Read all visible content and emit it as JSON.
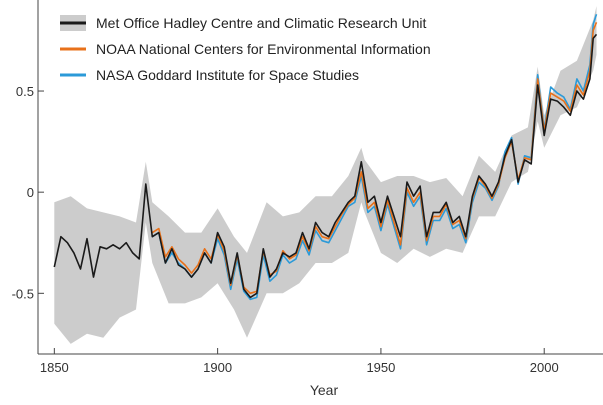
{
  "chart_data": {
    "type": "line",
    "title": "",
    "xlabel": "Year",
    "ylabel": "",
    "xlim": [
      1845,
      2018
    ],
    "ylim": [
      -0.8,
      0.95
    ],
    "grid": false,
    "legend_position": "top-left",
    "x_ticks": [
      1850,
      1900,
      1950,
      2000
    ],
    "x_tick_labels": [
      "1850",
      "1900",
      "1950",
      "2000"
    ],
    "y_ticks": [
      0.5,
      0,
      -0.5
    ],
    "y_tick_labels": [
      "0.5",
      "0",
      "-0.5"
    ],
    "band": {
      "series": "Met Office Hadley Centre and Climatic Research Unit",
      "color": "#cccccc",
      "x": [
        1850,
        1855,
        1860,
        1865,
        1870,
        1875,
        1878,
        1880,
        1885,
        1890,
        1895,
        1900,
        1905,
        1909,
        1915,
        1920,
        1925,
        1930,
        1935,
        1940,
        1944,
        1945,
        1950,
        1955,
        1960,
        1965,
        1970,
        1975,
        1980,
        1985,
        1990,
        1995,
        1998,
        2000,
        2005,
        2010,
        2015,
        2016
      ],
      "upper": [
        -0.05,
        -0.02,
        -0.08,
        -0.1,
        -0.12,
        -0.15,
        0.15,
        -0.05,
        -0.12,
        -0.2,
        -0.2,
        -0.08,
        -0.22,
        -0.3,
        -0.05,
        -0.12,
        -0.1,
        -0.02,
        -0.02,
        0.08,
        0.22,
        0.16,
        0.05,
        0.08,
        0.08,
        0.05,
        0.07,
        -0.02,
        0.18,
        0.1,
        0.28,
        0.32,
        0.62,
        0.38,
        0.6,
        0.65,
        0.85,
        0.92
      ],
      "lower": [
        -0.65,
        -0.75,
        -0.7,
        -0.72,
        -0.62,
        -0.58,
        -0.15,
        -0.35,
        -0.55,
        -0.55,
        -0.52,
        -0.45,
        -0.58,
        -0.72,
        -0.5,
        -0.5,
        -0.45,
        -0.35,
        -0.35,
        -0.3,
        -0.05,
        -0.1,
        -0.3,
        -0.35,
        -0.28,
        -0.32,
        -0.28,
        -0.3,
        -0.12,
        -0.12,
        0.05,
        0.1,
        0.35,
        0.22,
        0.38,
        0.42,
        0.6,
        0.68
      ]
    },
    "series": [
      {
        "name": "Met Office Hadley Centre and Climatic Research Unit",
        "color": "#1a1a1a",
        "x": [
          1850,
          1852,
          1854,
          1856,
          1858,
          1860,
          1862,
          1864,
          1866,
          1868,
          1870,
          1872,
          1874,
          1876,
          1878,
          1880,
          1882,
          1884,
          1886,
          1888,
          1890,
          1892,
          1894,
          1896,
          1898,
          1900,
          1902,
          1904,
          1906,
          1908,
          1910,
          1912,
          1914,
          1916,
          1918,
          1920,
          1922,
          1924,
          1926,
          1928,
          1930,
          1932,
          1934,
          1936,
          1938,
          1940,
          1942,
          1944,
          1946,
          1948,
          1950,
          1952,
          1954,
          1956,
          1958,
          1960,
          1962,
          1964,
          1966,
          1968,
          1970,
          1972,
          1974,
          1976,
          1978,
          1980,
          1982,
          1984,
          1986,
          1988,
          1990,
          1992,
          1994,
          1996,
          1998,
          2000,
          2002,
          2004,
          2006,
          2008,
          2010,
          2012,
          2014,
          2015,
          2016
        ],
        "values": [
          -0.37,
          -0.22,
          -0.25,
          -0.3,
          -0.38,
          -0.23,
          -0.42,
          -0.27,
          -0.28,
          -0.26,
          -0.28,
          -0.25,
          -0.3,
          -0.33,
          0.04,
          -0.22,
          -0.2,
          -0.35,
          -0.28,
          -0.36,
          -0.38,
          -0.42,
          -0.38,
          -0.3,
          -0.35,
          -0.2,
          -0.27,
          -0.45,
          -0.3,
          -0.48,
          -0.52,
          -0.5,
          -0.28,
          -0.42,
          -0.38,
          -0.3,
          -0.32,
          -0.3,
          -0.2,
          -0.28,
          -0.15,
          -0.2,
          -0.22,
          -0.15,
          -0.1,
          -0.05,
          -0.02,
          0.15,
          -0.05,
          -0.02,
          -0.15,
          -0.02,
          -0.12,
          -0.22,
          0.05,
          -0.02,
          0.03,
          -0.22,
          -0.1,
          -0.1,
          -0.05,
          -0.15,
          -0.12,
          -0.22,
          -0.02,
          0.08,
          0.04,
          -0.02,
          0.05,
          0.18,
          0.26,
          0.05,
          0.16,
          0.14,
          0.53,
          0.28,
          0.46,
          0.45,
          0.42,
          0.38,
          0.5,
          0.46,
          0.56,
          0.76,
          0.78
        ]
      },
      {
        "name": "NOAA National Centers for Environmental Information",
        "color": "#e8711a",
        "x": [
          1880,
          1882,
          1884,
          1886,
          1888,
          1890,
          1892,
          1894,
          1896,
          1898,
          1900,
          1902,
          1904,
          1906,
          1908,
          1910,
          1912,
          1914,
          1916,
          1918,
          1920,
          1922,
          1924,
          1926,
          1928,
          1930,
          1932,
          1934,
          1936,
          1938,
          1940,
          1942,
          1944,
          1946,
          1948,
          1950,
          1952,
          1954,
          1956,
          1958,
          1960,
          1962,
          1964,
          1966,
          1968,
          1970,
          1972,
          1974,
          1976,
          1978,
          1980,
          1982,
          1984,
          1986,
          1988,
          1990,
          1992,
          1994,
          1996,
          1998,
          2000,
          2002,
          2004,
          2006,
          2008,
          2010,
          2012,
          2014,
          2015,
          2016
        ],
        "values": [
          -0.2,
          -0.18,
          -0.32,
          -0.27,
          -0.33,
          -0.36,
          -0.4,
          -0.36,
          -0.28,
          -0.33,
          -0.21,
          -0.29,
          -0.46,
          -0.31,
          -0.47,
          -0.5,
          -0.49,
          -0.29,
          -0.41,
          -0.39,
          -0.29,
          -0.33,
          -0.31,
          -0.22,
          -0.29,
          -0.17,
          -0.22,
          -0.23,
          -0.17,
          -0.11,
          -0.06,
          -0.03,
          0.1,
          -0.08,
          -0.05,
          -0.17,
          -0.04,
          -0.15,
          -0.26,
          0.02,
          -0.05,
          0.0,
          -0.24,
          -0.12,
          -0.12,
          -0.06,
          -0.16,
          -0.14,
          -0.23,
          -0.03,
          0.07,
          0.03,
          -0.03,
          0.04,
          0.17,
          0.25,
          0.06,
          0.17,
          0.16,
          0.56,
          0.3,
          0.49,
          0.47,
          0.45,
          0.4,
          0.53,
          0.48,
          0.6,
          0.8,
          0.84
        ]
      },
      {
        "name": "NASA Goddard Institute for Space Studies",
        "color": "#2b9ad8",
        "x": [
          1880,
          1882,
          1884,
          1886,
          1888,
          1890,
          1892,
          1894,
          1896,
          1898,
          1900,
          1902,
          1904,
          1906,
          1908,
          1910,
          1912,
          1914,
          1916,
          1918,
          1920,
          1922,
          1924,
          1926,
          1928,
          1930,
          1932,
          1934,
          1936,
          1938,
          1940,
          1942,
          1944,
          1946,
          1948,
          1950,
          1952,
          1954,
          1956,
          1958,
          1960,
          1962,
          1964,
          1966,
          1968,
          1970,
          1972,
          1974,
          1976,
          1978,
          1980,
          1982,
          1984,
          1986,
          1988,
          1990,
          1992,
          1994,
          1996,
          1998,
          2000,
          2002,
          2004,
          2006,
          2008,
          2010,
          2012,
          2014,
          2015,
          2016
        ],
        "values": [
          -0.22,
          -0.2,
          -0.35,
          -0.3,
          -0.35,
          -0.38,
          -0.42,
          -0.38,
          -0.3,
          -0.35,
          -0.23,
          -0.31,
          -0.48,
          -0.33,
          -0.49,
          -0.53,
          -0.52,
          -0.31,
          -0.44,
          -0.41,
          -0.31,
          -0.35,
          -0.33,
          -0.24,
          -0.31,
          -0.19,
          -0.24,
          -0.25,
          -0.19,
          -0.13,
          -0.07,
          -0.05,
          0.08,
          -0.1,
          -0.07,
          -0.19,
          -0.06,
          -0.17,
          -0.28,
          0.0,
          -0.07,
          -0.02,
          -0.26,
          -0.14,
          -0.14,
          -0.08,
          -0.18,
          -0.16,
          -0.25,
          -0.05,
          0.05,
          0.02,
          -0.04,
          0.03,
          0.2,
          0.27,
          0.04,
          0.18,
          0.17,
          0.58,
          0.31,
          0.52,
          0.49,
          0.47,
          0.41,
          0.56,
          0.5,
          0.63,
          0.83,
          0.88
        ]
      }
    ],
    "legend": [
      {
        "label": "Met Office Hadley Centre and Climatic Research Unit",
        "color": "#1a1a1a",
        "band_color": "#cccccc"
      },
      {
        "label": "NOAA National Centers for Environmental Information",
        "color": "#e8711a"
      },
      {
        "label": "NASA Goddard Institute for Space Studies",
        "color": "#2b9ad8"
      }
    ]
  }
}
